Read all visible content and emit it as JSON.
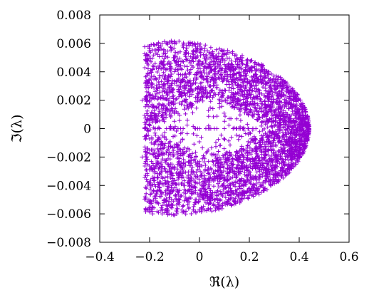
{
  "chart_data": {
    "type": "scatter",
    "title": "",
    "xlabel": "ℜ(λ)",
    "ylabel": "ℑ(λ)",
    "xlim": [
      -0.4,
      0.6
    ],
    "ylim": [
      -0.008,
      0.008
    ],
    "x_ticks": [
      "−0.4",
      "−0.2",
      "0",
      "0.2",
      "0.4",
      "0.6"
    ],
    "x_tick_values": [
      -0.4,
      -0.2,
      0,
      0.2,
      0.4,
      0.6
    ],
    "y_ticks": [
      "−0.008",
      "−0.006",
      "−0.004",
      "−0.002",
      "0",
      "0.002",
      "0.004",
      "0.006",
      "0.008"
    ],
    "y_tick_values": [
      -0.008,
      -0.006,
      -0.004,
      -0.002,
      0,
      0.002,
      0.004,
      0.006,
      0.008
    ],
    "grid": false,
    "legend": "none",
    "marker": "+",
    "series": [
      {
        "color": "#9400d3",
        "description_of_extent": "dense eigenvalue cloud, crescent shaped",
        "envelope": {
          "real_min": -0.24,
          "real_max": 0.44,
          "imag_max": 0.0062,
          "sample_points": [
            [
              -0.23,
              0.002
            ],
            [
              -0.23,
              -0.002
            ],
            [
              -0.22,
              0.0
            ],
            [
              -0.2,
              0.0058
            ],
            [
              -0.2,
              -0.0058
            ],
            [
              -0.15,
              0.006
            ],
            [
              -0.15,
              -0.006
            ],
            [
              -0.1,
              0.0061
            ],
            [
              -0.1,
              -0.0061
            ],
            [
              0.0,
              0.0058
            ],
            [
              0.0,
              -0.0058
            ],
            [
              0.1,
              0.0052
            ],
            [
              0.1,
              -0.0052
            ],
            [
              0.2,
              0.0042
            ],
            [
              0.2,
              -0.0042
            ],
            [
              0.3,
              0.0028
            ],
            [
              0.3,
              -0.0028
            ],
            [
              0.38,
              0.0016
            ],
            [
              0.38,
              -0.0016
            ],
            [
              0.44,
              0.0
            ],
            [
              -0.1,
              0.0
            ],
            [
              0.0,
              0.0
            ],
            [
              0.1,
              0.0
            ],
            [
              0.15,
              0.0
            ]
          ]
        }
      }
    ]
  }
}
